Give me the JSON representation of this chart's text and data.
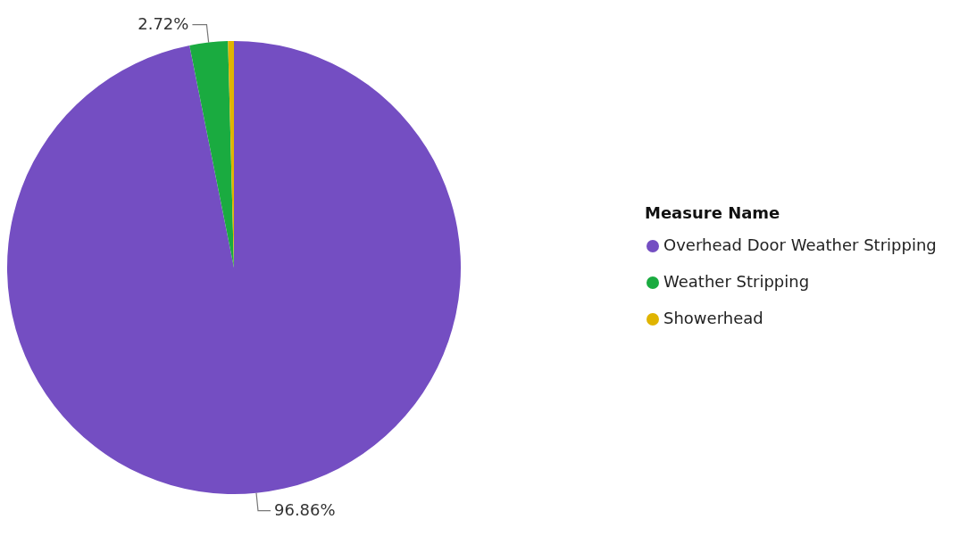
{
  "chart_data": {
    "type": "pie",
    "legend_title": "Measure Name",
    "legend": "right",
    "categories": [
      "Overhead Door Weather Stripping",
      "Weather Stripping",
      "Showerhead"
    ],
    "values": [
      96.86,
      2.72,
      0.42
    ],
    "colors": [
      "#744ec2",
      "#1aab40",
      "#e0b400"
    ],
    "value_labels": [
      "96.86%",
      "2.72%",
      null
    ]
  }
}
